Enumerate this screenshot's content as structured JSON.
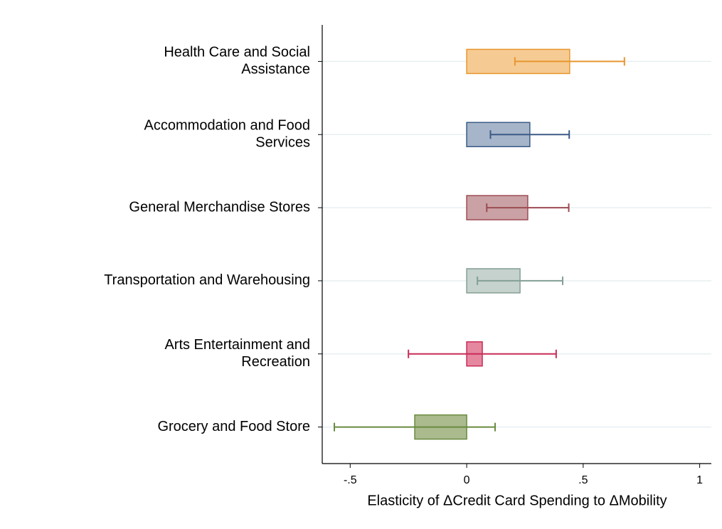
{
  "chart_data": {
    "type": "hbar-error",
    "categories": [
      [
        "Health Care and Social",
        "Assistance"
      ],
      [
        "Accommodation and Food",
        "Services"
      ],
      [
        "General Merchandise Stores"
      ],
      [
        "Transportation and Warehousing"
      ],
      [
        "Arts Entertainment and",
        "Recreation"
      ],
      [
        "Grocery and Food Store"
      ]
    ],
    "values": [
      0.442,
      0.271,
      0.262,
      0.229,
      0.067,
      -0.223
    ],
    "errors": [
      0.235,
      0.169,
      0.176,
      0.183,
      0.317,
      0.345
    ],
    "colors": [
      "#f6cb93",
      "#a6b5c9",
      "#caa2a5",
      "#c6d2cd",
      "#e687a0",
      "#abbb8e"
    ],
    "edge_colors": [
      "#e8962e",
      "#3b5b86",
      "#9d4b53",
      "#839f95",
      "#c82c57",
      "#698b3f"
    ],
    "x_label": "Elasticity of ΔCredit Card Spending to ΔMobility",
    "xlim": [
      -0.62,
      1.05
    ],
    "xticks": [
      {
        "value": -0.5,
        "label": "-.5"
      },
      0,
      {
        "value": 0.5,
        "label": ".5"
      },
      1
    ],
    "grid": true
  }
}
